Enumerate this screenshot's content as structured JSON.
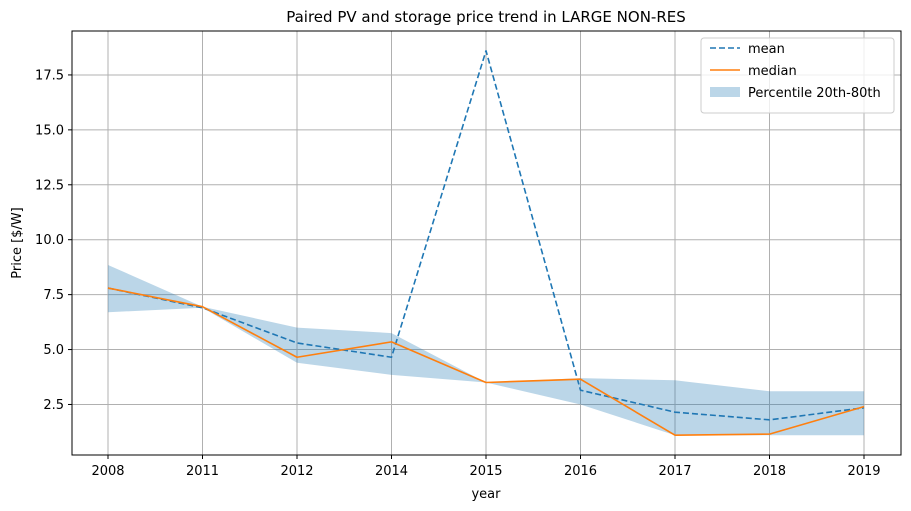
{
  "chart_data": {
    "type": "line",
    "title": "Paired PV and storage price trend in LARGE NON-RES",
    "xlabel": "year",
    "ylabel": "Price [$/W]",
    "categories": [
      "2008",
      "2011",
      "2012",
      "2014",
      "2015",
      "2016",
      "2017",
      "2018",
      "2019"
    ],
    "ylim": [
      0.2,
      19.5
    ],
    "yticks": [
      2.5,
      5.0,
      7.5,
      10.0,
      12.5,
      15.0,
      17.5
    ],
    "ytick_labels": [
      "2.5",
      "5.0",
      "7.5",
      "10.0",
      "12.5",
      "15.0",
      "17.5"
    ],
    "grid": true,
    "legend_position": "top-right",
    "series": [
      {
        "name": "mean",
        "style": "dashed",
        "color": "#1f77b4",
        "values": [
          7.8,
          6.9,
          5.3,
          4.65,
          18.6,
          3.15,
          2.15,
          1.8,
          2.35
        ]
      },
      {
        "name": "median",
        "style": "solid",
        "color": "#ff7f0e",
        "values": [
          7.8,
          6.95,
          4.65,
          5.35,
          3.5,
          3.65,
          1.1,
          1.15,
          2.4
        ]
      }
    ],
    "band": {
      "name": "Percentile 20th-80th",
      "color": "#1f77b4",
      "opacity": 0.3,
      "lower": [
        6.7,
        6.9,
        4.4,
        3.85,
        3.5,
        2.5,
        1.1,
        1.1,
        1.1
      ],
      "upper": [
        8.85,
        6.95,
        6.0,
        5.75,
        3.5,
        3.7,
        3.6,
        3.1,
        3.1
      ]
    }
  }
}
